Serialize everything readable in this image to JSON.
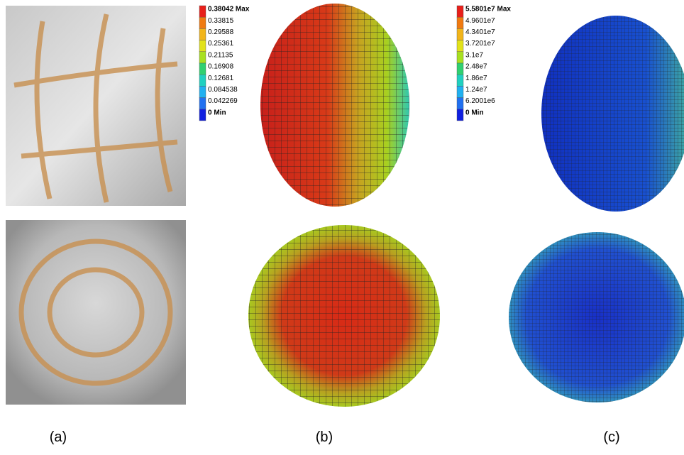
{
  "panels": [
    {
      "label": "(a)"
    },
    {
      "label": "(b)"
    },
    {
      "label": "(c)"
    }
  ],
  "legends": [
    {
      "entries": [
        "0.38042 Max",
        "0.33815",
        "0.29588",
        "0.25361",
        "0.21135",
        "0.16908",
        "0.12681",
        "0.084538",
        "0.042269",
        "0 Min"
      ],
      "colors": [
        "#e8201a",
        "#f07a10",
        "#f2b51a",
        "#e2e21a",
        "#a8e020",
        "#30d070",
        "#20d0c0",
        "#20b0f0",
        "#2070f0",
        "#1020e0"
      ]
    },
    {
      "entries": [
        "5.5801e7 Max",
        "4.9601e7",
        "4.3401e7",
        "3.7201e7",
        "3.1e7",
        "2.48e7",
        "1.86e7",
        "1.24e7",
        "6.2001e6",
        "0 Min"
      ],
      "colors": [
        "#e8201a",
        "#f07a10",
        "#f2b51a",
        "#e2e21a",
        "#a8e020",
        "#30d070",
        "#20d0c0",
        "#20b0f0",
        "#2070f0",
        "#1020e0"
      ]
    }
  ]
}
